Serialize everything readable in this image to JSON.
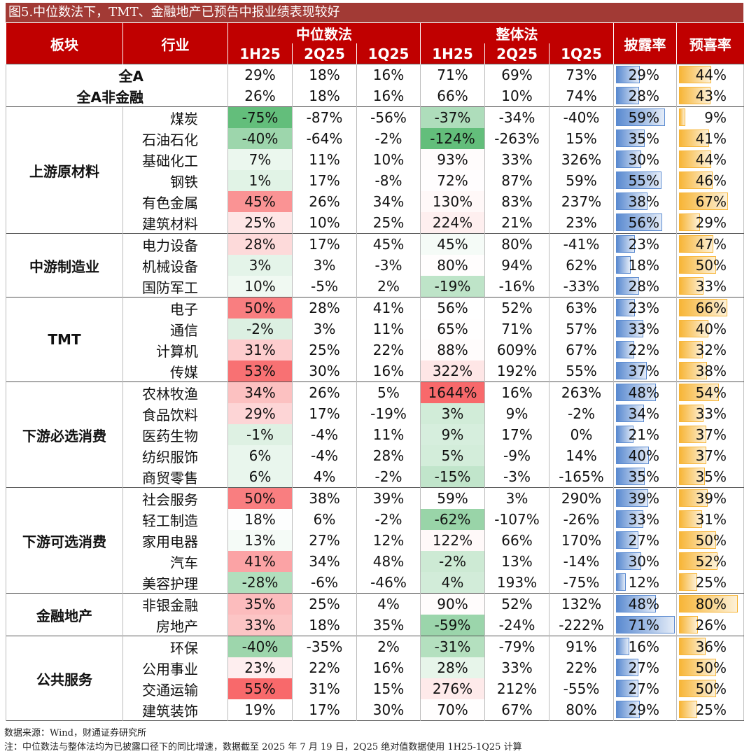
{
  "header": {
    "title": "图5.中位数法下，TMT、金融地产已预告中报业绩表现较好"
  },
  "table": {
    "col_sector": "板块",
    "col_industry": "行业",
    "group_median": "中位数法",
    "group_overall": "整体法",
    "periods": [
      "1H25",
      "2Q25",
      "1Q25",
      "1H25",
      "2Q25",
      "1Q25"
    ],
    "col_disclose": "披露率",
    "col_positive": "预喜率",
    "summary": [
      {
        "label": "全A",
        "values": [
          "29%",
          "18%",
          "16%",
          "71%",
          "69%",
          "73%",
          "29%",
          "44%"
        ]
      },
      {
        "label": "全A非金融",
        "values": [
          "26%",
          "18%",
          "16%",
          "66%",
          "10%",
          "74%",
          "28%",
          "43%"
        ]
      }
    ],
    "groups": [
      {
        "sector": "上游原材料",
        "rows": [
          {
            "industry": "煤炭",
            "values": [
              "-75%",
              "-87%",
              "-56%",
              "-37%",
              "-34%",
              "-40%",
              "59%",
              "9%"
            ]
          },
          {
            "industry": "石油石化",
            "values": [
              "-40%",
              "-64%",
              "-2%",
              "-124%",
              "-263%",
              "15%",
              "35%",
              "41%"
            ]
          },
          {
            "industry": "基础化工",
            "values": [
              "7%",
              "11%",
              "10%",
              "93%",
              "33%",
              "326%",
              "30%",
              "44%"
            ]
          },
          {
            "industry": "钢铁",
            "values": [
              "1%",
              "17%",
              "-8%",
              "72%",
              "87%",
              "59%",
              "55%",
              "46%"
            ]
          },
          {
            "industry": "有色金属",
            "values": [
              "45%",
              "26%",
              "34%",
              "130%",
              "83%",
              "237%",
              "38%",
              "67%"
            ]
          },
          {
            "industry": "建筑材料",
            "values": [
              "25%",
              "10%",
              "25%",
              "224%",
              "21%",
              "23%",
              "56%",
              "29%"
            ]
          }
        ]
      },
      {
        "sector": "中游制造业",
        "rows": [
          {
            "industry": "电力设备",
            "values": [
              "28%",
              "17%",
              "45%",
              "45%",
              "80%",
              "-41%",
              "23%",
              "47%"
            ]
          },
          {
            "industry": "机械设备",
            "values": [
              "3%",
              "3%",
              "-3%",
              "80%",
              "94%",
              "62%",
              "18%",
              "50%"
            ]
          },
          {
            "industry": "国防军工",
            "values": [
              "10%",
              "-5%",
              "2%",
              "-19%",
              "-16%",
              "-33%",
              "28%",
              "33%"
            ]
          }
        ]
      },
      {
        "sector": "TMT",
        "rows": [
          {
            "industry": "电子",
            "values": [
              "50%",
              "28%",
              "41%",
              "56%",
              "52%",
              "63%",
              "23%",
              "66%"
            ]
          },
          {
            "industry": "通信",
            "values": [
              "-2%",
              "3%",
              "11%",
              "65%",
              "71%",
              "57%",
              "33%",
              "40%"
            ]
          },
          {
            "industry": "计算机",
            "values": [
              "31%",
              "25%",
              "22%",
              "88%",
              "609%",
              "67%",
              "22%",
              "32%"
            ]
          },
          {
            "industry": "传媒",
            "values": [
              "53%",
              "30%",
              "16%",
              "322%",
              "192%",
              "55%",
              "37%",
              "38%"
            ]
          }
        ]
      },
      {
        "sector": "下游必选消费",
        "rows": [
          {
            "industry": "农林牧渔",
            "values": [
              "34%",
              "26%",
              "5%",
              "1644%",
              "16%",
              "263%",
              "48%",
              "54%"
            ]
          },
          {
            "industry": "食品饮料",
            "values": [
              "29%",
              "17%",
              "-19%",
              "3%",
              "9%",
              "-2%",
              "34%",
              "33%"
            ]
          },
          {
            "industry": "医药生物",
            "values": [
              "-1%",
              "-4%",
              "11%",
              "9%",
              "17%",
              "0%",
              "21%",
              "37%"
            ]
          },
          {
            "industry": "纺织服饰",
            "values": [
              "6%",
              "-4%",
              "28%",
              "5%",
              "-9%",
              "14%",
              "40%",
              "37%"
            ]
          },
          {
            "industry": "商贸零售",
            "values": [
              "6%",
              "4%",
              "-2%",
              "-15%",
              "-3%",
              "-165%",
              "35%",
              "35%"
            ]
          }
        ]
      },
      {
        "sector": "下游可选消费",
        "rows": [
          {
            "industry": "社会服务",
            "values": [
              "50%",
              "38%",
              "39%",
              "59%",
              "3%",
              "290%",
              "39%",
              "39%"
            ]
          },
          {
            "industry": "轻工制造",
            "values": [
              "18%",
              "6%",
              "-2%",
              "-62%",
              "-107%",
              "-26%",
              "33%",
              "31%"
            ]
          },
          {
            "industry": "家用电器",
            "values": [
              "13%",
              "27%",
              "12%",
              "122%",
              "66%",
              "170%",
              "27%",
              "50%"
            ]
          },
          {
            "industry": "汽车",
            "values": [
              "41%",
              "34%",
              "48%",
              "-2%",
              "13%",
              "-14%",
              "30%",
              "52%"
            ]
          },
          {
            "industry": "美容护理",
            "values": [
              "-28%",
              "-6%",
              "-46%",
              "4%",
              "193%",
              "-75%",
              "12%",
              "25%"
            ]
          }
        ]
      },
      {
        "sector": "金融地产",
        "rows": [
          {
            "industry": "非银金融",
            "values": [
              "35%",
              "25%",
              "4%",
              "90%",
              "52%",
              "132%",
              "48%",
              "80%"
            ]
          },
          {
            "industry": "房地产",
            "values": [
              "33%",
              "18%",
              "35%",
              "-59%",
              "-24%",
              "-222%",
              "71%",
              "26%"
            ]
          }
        ]
      },
      {
        "sector": "公共服务",
        "rows": [
          {
            "industry": "环保",
            "values": [
              "-40%",
              "-35%",
              "2%",
              "-31%",
              "-79%",
              "91%",
              "16%",
              "36%"
            ]
          },
          {
            "industry": "公用事业",
            "values": [
              "23%",
              "22%",
              "16%",
              "28%",
              "33%",
              "22%",
              "27%",
              "50%"
            ]
          },
          {
            "industry": "交通运输",
            "values": [
              "55%",
              "31%",
              "15%",
              "276%",
              "212%",
              "-55%",
              "27%",
              "50%"
            ]
          },
          {
            "industry": "建筑装饰",
            "values": [
              "19%",
              "17%",
              "30%",
              "70%",
              "67%",
              "80%",
              "29%",
              "25%"
            ]
          }
        ]
      }
    ]
  },
  "footer": {
    "source": "数据来源：Wind，财通证券研究所",
    "note": "注：中位数法与整体法均为已披露口径下的同比增速，数据截至 2025 年 7 月 19 日，2Q25 绝对值数据使用 1H25-1Q25 计算"
  }
}
